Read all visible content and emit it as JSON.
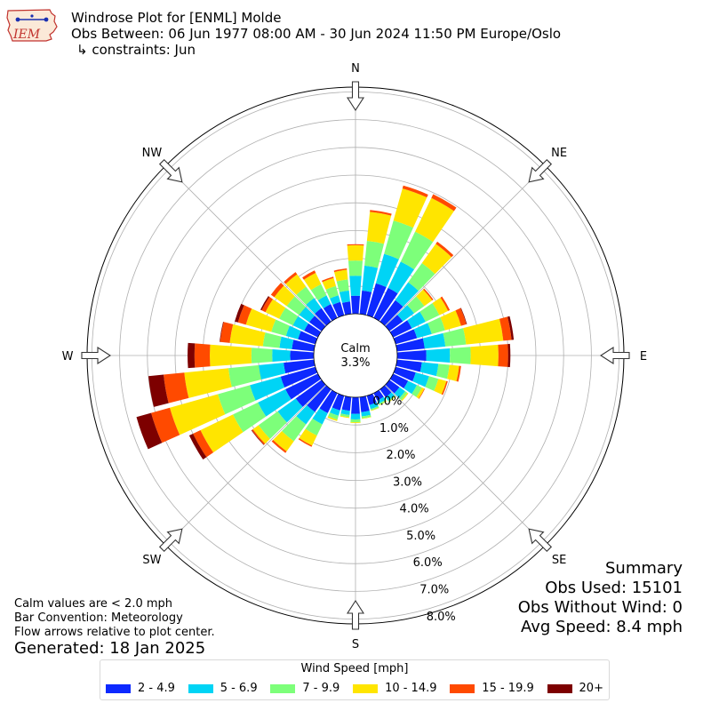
{
  "header": {
    "title": "Windrose Plot for [ENML] Molde",
    "obs_between": "Obs Between: 06 Jun 1977 08:00 AM - 30 Jun 2024 11:50 PM Europe/Oslo",
    "constraints": "↳ constraints: Jun",
    "logo_text": "IEM"
  },
  "summary": {
    "heading": "Summary",
    "obs_used": "Obs Used: 15101",
    "obs_without_wind": "Obs Without Wind: 0",
    "avg_speed": "Avg Speed: 8.4 mph"
  },
  "notes": {
    "calm_note": "Calm values are < 2.0 mph",
    "bar_convention": "Bar Convention: Meteorology",
    "flow_arrows": "Flow arrows relative to plot center.",
    "generated": "Generated: 18 Jan 2025"
  },
  "chart_data": {
    "type": "windrose",
    "calm_label": "Calm",
    "calm_value": "3.3%",
    "directions_compass": [
      "N",
      "NE",
      "E",
      "SE",
      "S",
      "SW",
      "W",
      "NW"
    ],
    "radial_ticks": [
      "0.0%",
      "1.0%",
      "2.0%",
      "3.0%",
      "4.0%",
      "5.0%",
      "6.0%",
      "7.0%",
      "8.0%"
    ],
    "radial_range": [
      0,
      8.5
    ],
    "legend": {
      "title": "Wind Speed [mph]",
      "bins": [
        "2 - 4.9",
        "5 - 6.9",
        "7 - 9.9",
        "10 - 14.9",
        "15 - 19.9",
        "20+"
      ],
      "colors": [
        "#0d29ff",
        "#00d4f5",
        "#7dff7a",
        "#ffe500",
        "#ff4a00",
        "#7d0000"
      ]
    },
    "sector_directions_deg": [
      0,
      10,
      20,
      30,
      40,
      50,
      60,
      70,
      80,
      90,
      100,
      110,
      120,
      130,
      140,
      150,
      160,
      170,
      180,
      190,
      200,
      210,
      220,
      230,
      240,
      250,
      260,
      270,
      280,
      290,
      300,
      310,
      320,
      330,
      340,
      350
    ],
    "frequencies_percent": [
      [
        0.65,
        0.72,
        0.55,
        0.55,
        0.04,
        0.0
      ],
      [
        0.85,
        0.9,
        0.9,
        1.05,
        0.07,
        0.0
      ],
      [
        1.2,
        1.1,
        1.25,
        1.2,
        0.11,
        0.0
      ],
      [
        1.2,
        1.05,
        1.2,
        1.35,
        0.15,
        0.0
      ],
      [
        0.95,
        0.8,
        0.85,
        0.85,
        0.1,
        0.0
      ],
      [
        0.6,
        0.5,
        0.45,
        0.35,
        0.05,
        0.0
      ],
      [
        0.75,
        0.55,
        0.55,
        0.35,
        0.07,
        0.0
      ],
      [
        0.8,
        0.55,
        0.5,
        0.6,
        0.2,
        0.02
      ],
      [
        1.0,
        0.75,
        0.75,
        1.35,
        0.3,
        0.08
      ],
      [
        1.05,
        0.85,
        0.75,
        1.0,
        0.35,
        0.08
      ],
      [
        0.9,
        0.6,
        0.4,
        0.35,
        0.07,
        0.0
      ],
      [
        0.75,
        0.5,
        0.35,
        0.3,
        0.05,
        0.0
      ],
      [
        0.6,
        0.35,
        0.2,
        0.1,
        0.02,
        0.0
      ],
      [
        0.45,
        0.25,
        0.1,
        0.04,
        0.0,
        0.0
      ],
      [
        0.35,
        0.15,
        0.05,
        0.02,
        0.0,
        0.0
      ],
      [
        0.3,
        0.12,
        0.05,
        0.02,
        0.0,
        0.0
      ],
      [
        0.35,
        0.15,
        0.05,
        0.02,
        0.0,
        0.0
      ],
      [
        0.55,
        0.15,
        0.07,
        0.02,
        0.0,
        0.0
      ],
      [
        0.6,
        0.2,
        0.1,
        0.03,
        0.0,
        0.0
      ],
      [
        0.5,
        0.15,
        0.08,
        0.03,
        0.0,
        0.0
      ],
      [
        0.55,
        0.2,
        0.15,
        0.05,
        0.0,
        0.0
      ],
      [
        0.8,
        0.45,
        0.45,
        0.4,
        0.05,
        0.0
      ],
      [
        1.0,
        0.55,
        0.75,
        0.45,
        0.07,
        0.0
      ],
      [
        1.15,
        0.8,
        0.85,
        0.25,
        0.05,
        0.02
      ],
      [
        1.3,
        1.1,
        1.0,
        1.3,
        0.3,
        0.15
      ],
      [
        1.3,
        1.15,
        1.2,
        1.8,
        0.7,
        0.55
      ],
      [
        1.1,
        0.9,
        1.1,
        1.6,
        0.75,
        0.55
      ],
      [
        0.85,
        0.65,
        0.75,
        1.5,
        0.55,
        0.25
      ],
      [
        0.8,
        0.45,
        0.6,
        1.2,
        0.35,
        0.02
      ],
      [
        0.65,
        0.45,
        0.55,
        0.95,
        0.3,
        0.12
      ],
      [
        0.55,
        0.45,
        0.55,
        0.55,
        0.15,
        0.05
      ],
      [
        0.55,
        0.45,
        0.55,
        0.55,
        0.15,
        0.0
      ],
      [
        0.6,
        0.45,
        0.5,
        0.55,
        0.1,
        0.0
      ],
      [
        0.55,
        0.35,
        0.45,
        0.45,
        0.1,
        0.0
      ],
      [
        0.5,
        0.25,
        0.35,
        0.3,
        0.05,
        0.0
      ],
      [
        0.45,
        0.4,
        0.4,
        0.35,
        0.05,
        0.0
      ]
    ]
  }
}
